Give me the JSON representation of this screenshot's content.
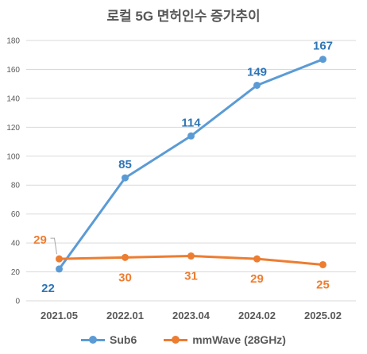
{
  "chart_data": {
    "type": "line",
    "title": "로컬 5G 면허인수 증가추이",
    "xlabel": "",
    "ylabel": "",
    "categories": [
      "2021.05",
      "2022.01",
      "2023.04",
      "2024.02",
      "2025.02"
    ],
    "ylim": [
      0,
      180
    ],
    "yticks": [
      0,
      20,
      40,
      60,
      80,
      100,
      120,
      140,
      160,
      180
    ],
    "grid": true,
    "legend_position": "bottom",
    "series": [
      {
        "name": "Sub6",
        "color": "#5B9BD5",
        "label_color": "#2E75B6",
        "values": [
          22,
          85,
          114,
          149,
          167
        ]
      },
      {
        "name": "mmWave (28GHz)",
        "color": "#ED7D31",
        "label_color": "#ED7D31",
        "values": [
          29,
          30,
          31,
          29,
          25
        ]
      }
    ]
  }
}
